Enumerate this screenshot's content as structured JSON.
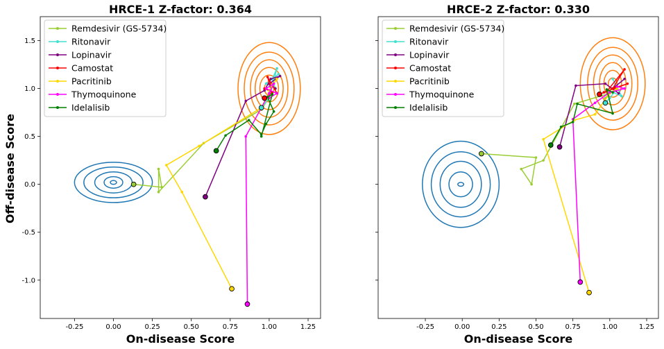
{
  "figure": {
    "ylabel": "Off-disease Score",
    "xlabel": "On-disease Score"
  },
  "colors": {
    "healthy_contour": "#1f77b4",
    "infected_contour": "#ff7f0e"
  },
  "chart_data": [
    {
      "type": "line",
      "title": "HRCE-1 Z-factor: 0.364",
      "xlabel": "On-disease Score",
      "ylabel": "Off-disease Score",
      "xlim": [
        -0.47,
        1.33
      ],
      "ylim": [
        -1.4,
        1.75
      ],
      "xticks": [
        "-0.25",
        "0.00",
        "0.25",
        "0.50",
        "0.75",
        "1.00",
        "1.25"
      ],
      "yticks": [
        "-1.0",
        "-0.5",
        "0.0",
        "0.5",
        "1.0",
        "1.5"
      ],
      "legend_position": "top-left",
      "contours": [
        {
          "group": "healthy",
          "center": [
            0.0,
            0.02
          ],
          "radii": [
            [
              0.25,
              0.21
            ],
            [
              0.19,
              0.16
            ],
            [
              0.12,
              0.11
            ],
            [
              0.06,
              0.06
            ],
            [
              0.02,
              0.02
            ]
          ]
        },
        {
          "group": "infected",
          "center": [
            1.0,
            1.0
          ],
          "radii": [
            [
              0.2,
              0.48
            ],
            [
              0.16,
              0.38
            ],
            [
              0.12,
              0.3
            ],
            [
              0.09,
              0.22
            ],
            [
              0.06,
              0.14
            ],
            [
              0.03,
              0.07
            ]
          ]
        }
      ],
      "series": [
        {
          "name": "Remdesivir (GS-5734)",
          "color": "#9acd32",
          "points": [
            [
              0.13,
              0.0
            ],
            [
              0.31,
              -0.03
            ],
            [
              0.29,
              0.16
            ],
            [
              0.29,
              -0.08
            ],
            [
              0.58,
              0.43
            ],
            [
              0.95,
              0.78
            ],
            [
              0.99,
              0.88
            ],
            [
              1.02,
              0.96
            ],
            [
              0.97,
              0.9
            ]
          ]
        },
        {
          "name": "Ritonavir",
          "color": "#40e0d0",
          "points": [
            [
              0.95,
              0.8
            ],
            [
              1.0,
              0.9
            ],
            [
              1.05,
              1.21
            ],
            [
              1.02,
              1.1
            ],
            [
              1.04,
              1.0
            ],
            [
              0.98,
              1.05
            ],
            [
              1.06,
              1.15
            ]
          ]
        },
        {
          "name": "Lopinavir",
          "color": "#800080",
          "points": [
            [
              0.59,
              -0.13
            ],
            [
              0.85,
              0.87
            ],
            [
              0.97,
              0.98
            ],
            [
              1.01,
              1.1
            ],
            [
              1.07,
              1.13
            ],
            [
              1.0,
              1.05
            ],
            [
              1.04,
              1.0
            ]
          ]
        },
        {
          "name": "Camostat",
          "color": "#ff0000",
          "points": [
            [
              0.97,
              0.9
            ],
            [
              1.02,
              0.96
            ],
            [
              0.97,
              1.0
            ],
            [
              1.05,
              0.95
            ],
            [
              0.99,
              1.12
            ],
            [
              1.02,
              0.93
            ]
          ]
        },
        {
          "name": "Pacritinib",
          "color": "#ffd700",
          "points": [
            [
              0.76,
              -1.09
            ],
            [
              0.44,
              -0.08
            ],
            [
              0.34,
              0.2
            ],
            [
              0.55,
              0.4
            ],
            [
              0.95,
              0.8
            ],
            [
              1.02,
              1.04
            ],
            [
              1.05,
              1.1
            ],
            [
              1.0,
              0.98
            ]
          ]
        },
        {
          "name": "Thymoquinone",
          "color": "#ff00ff",
          "points": [
            [
              0.86,
              -1.25
            ],
            [
              0.85,
              0.5
            ],
            [
              0.95,
              0.8
            ],
            [
              1.0,
              0.95
            ],
            [
              1.03,
              1.05
            ],
            [
              0.98,
              1.0
            ],
            [
              1.05,
              0.95
            ],
            [
              1.0,
              0.9
            ]
          ]
        },
        {
          "name": "Idelalisib",
          "color": "#008000",
          "points": [
            [
              0.66,
              0.35
            ],
            [
              0.72,
              0.51
            ],
            [
              0.87,
              0.67
            ],
            [
              0.95,
              0.52
            ],
            [
              0.98,
              0.63
            ],
            [
              1.03,
              0.76
            ],
            [
              0.99,
              0.91
            ],
            [
              1.02,
              0.94
            ],
            [
              0.95,
              0.5
            ]
          ]
        }
      ]
    },
    {
      "type": "line",
      "title": "HRCE-2 Z-factor: 0.330",
      "xlabel": "On-disease Score",
      "ylabel": "",
      "xlim": [
        -0.57,
        1.33
      ],
      "ylim": [
        -1.4,
        1.75
      ],
      "xticks": [
        "-0.25",
        "0.00",
        "0.25",
        "0.50",
        "0.75",
        "1.00",
        "1.25"
      ],
      "yticks": [],
      "legend_position": "top-left",
      "contours": [
        {
          "group": "healthy",
          "center": [
            -0.01,
            0.0
          ],
          "radii": [
            [
              0.26,
              0.45
            ],
            [
              0.2,
              0.34
            ],
            [
              0.14,
              0.24
            ],
            [
              0.08,
              0.13
            ],
            [
              0.02,
              0.02
            ]
          ]
        },
        {
          "group": "infected",
          "center": [
            1.02,
            1.05
          ],
          "radii": [
            [
              0.22,
              0.48
            ],
            [
              0.17,
              0.38
            ],
            [
              0.13,
              0.3
            ],
            [
              0.09,
              0.22
            ],
            [
              0.06,
              0.14
            ],
            [
              0.03,
              0.06
            ]
          ]
        }
      ],
      "series": [
        {
          "name": "Remdesivir (GS-5734)",
          "color": "#9acd32",
          "points": [
            [
              0.13,
              0.32
            ],
            [
              0.5,
              0.28
            ],
            [
              0.47,
              0.0
            ],
            [
              0.4,
              0.16
            ],
            [
              0.55,
              0.25
            ],
            [
              0.76,
              0.84
            ],
            [
              1.0,
              0.95
            ],
            [
              0.97,
              0.9
            ]
          ]
        },
        {
          "name": "Ritonavir",
          "color": "#40e0d0",
          "points": [
            [
              0.97,
              0.85
            ],
            [
              1.0,
              0.9
            ],
            [
              1.05,
              1.0
            ],
            [
              1.02,
              1.1
            ],
            [
              1.08,
              0.92
            ],
            [
              0.99,
              0.98
            ]
          ]
        },
        {
          "name": "Lopinavir",
          "color": "#800080",
          "points": [
            [
              0.66,
              0.39
            ],
            [
              0.77,
              1.03
            ],
            [
              0.97,
              1.05
            ],
            [
              1.06,
              0.95
            ],
            [
              1.02,
              1.0
            ],
            [
              1.1,
              1.1
            ]
          ]
        },
        {
          "name": "Camostat",
          "color": "#ff0000",
          "points": [
            [
              0.93,
              0.94
            ],
            [
              0.98,
              0.97
            ],
            [
              1.1,
              1.2
            ],
            [
              1.02,
              1.0
            ],
            [
              1.12,
              1.05
            ],
            [
              0.96,
              0.96
            ]
          ]
        },
        {
          "name": "Pacritinib",
          "color": "#ffd700",
          "points": [
            [
              0.86,
              -1.13
            ],
            [
              0.55,
              0.47
            ],
            [
              0.76,
              0.67
            ],
            [
              0.9,
              0.73
            ],
            [
              1.0,
              0.95
            ],
            [
              1.05,
              1.0
            ]
          ]
        },
        {
          "name": "Thymoquinone",
          "color": "#ff00ff",
          "points": [
            [
              0.8,
              -1.02
            ],
            [
              0.75,
              0.68
            ],
            [
              0.9,
              0.85
            ],
            [
              1.0,
              0.96
            ],
            [
              1.1,
              1.0
            ],
            [
              1.05,
              1.02
            ]
          ]
        },
        {
          "name": "Idelalisib",
          "color": "#008000",
          "points": [
            [
              0.6,
              0.41
            ],
            [
              0.67,
              0.6
            ],
            [
              0.75,
              0.65
            ],
            [
              0.78,
              0.84
            ],
            [
              1.02,
              0.74
            ],
            [
              0.98,
              0.99
            ],
            [
              1.02,
              0.96
            ]
          ]
        }
      ]
    }
  ]
}
